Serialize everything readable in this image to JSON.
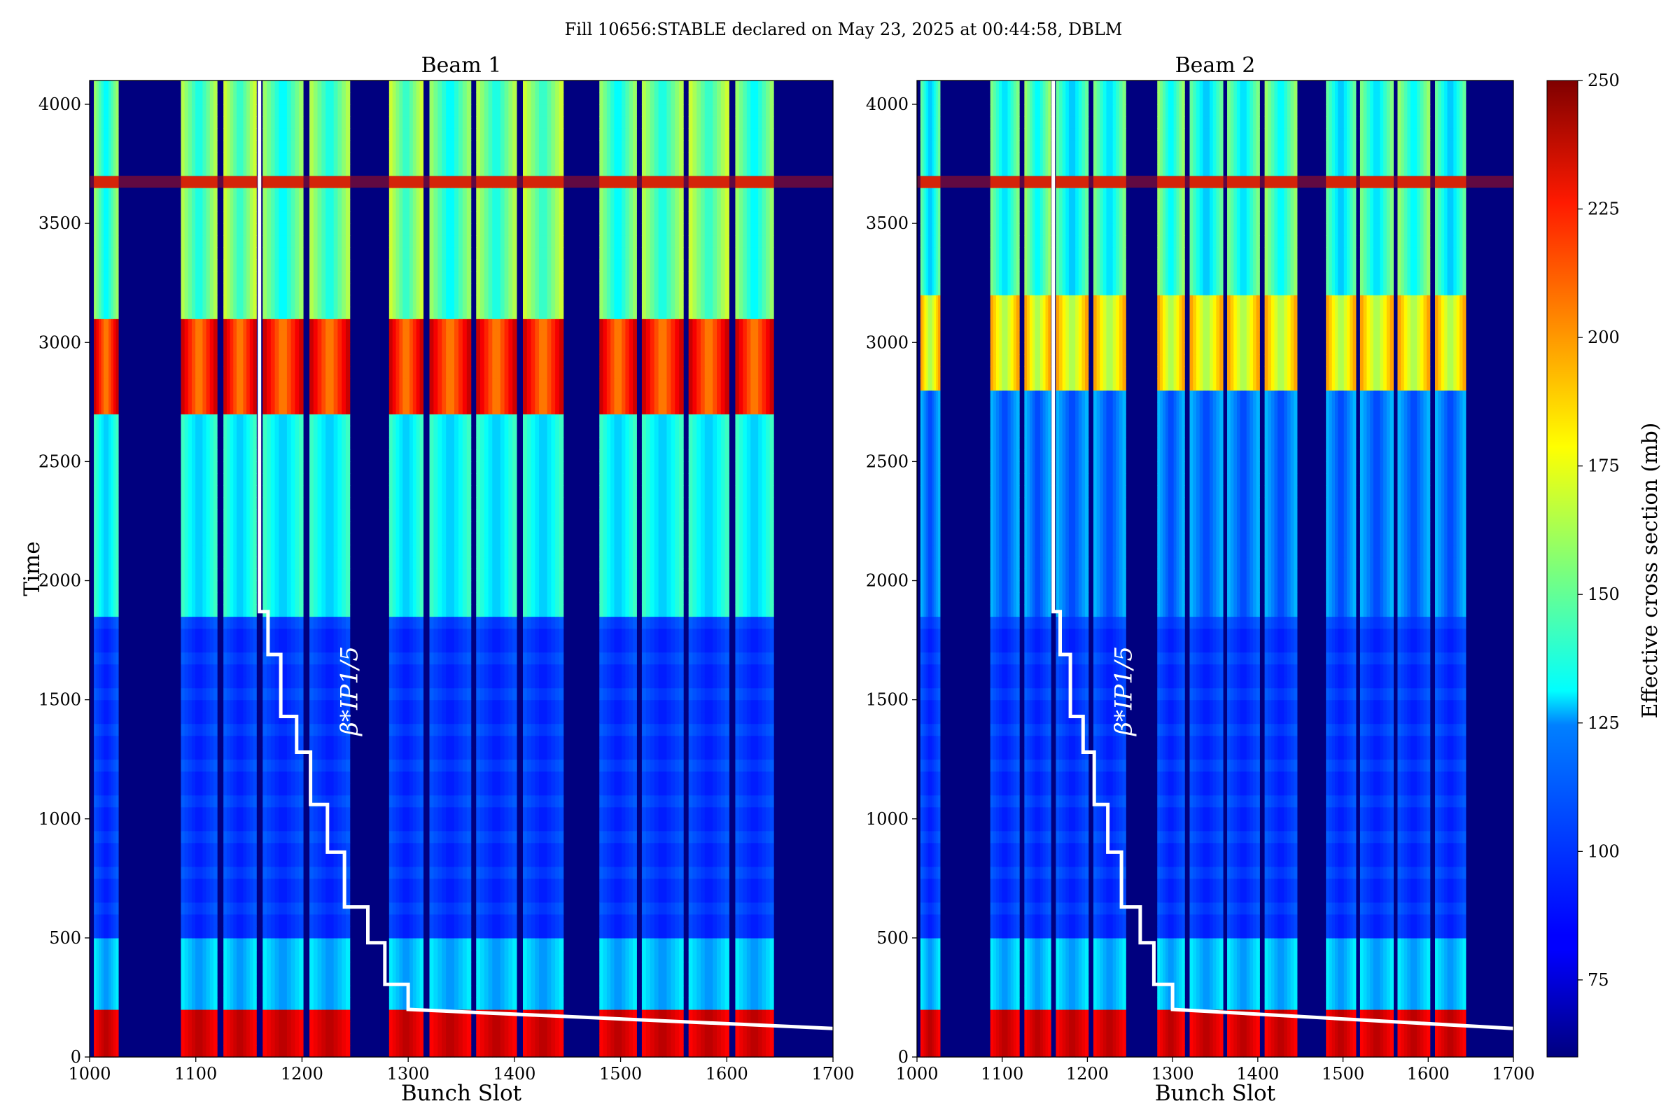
{
  "suptitle": "Fill 10656:STABLE declared on May 23, 2025 at 00:44:58, DBLM",
  "colors": {
    "background_cmap_low": "#00007f",
    "overlay_line": "#ffffff",
    "frame": "#000000"
  },
  "colorbar": {
    "label": "Effective cross section (mb)",
    "colormap": "jet",
    "range": [
      60,
      250
    ],
    "ticks": [
      "75",
      "100",
      "125",
      "150",
      "175",
      "200",
      "225",
      "250"
    ],
    "tick_values": [
      75,
      100,
      125,
      150,
      175,
      200,
      225,
      250
    ]
  },
  "chart_data": [
    {
      "type": "heatmap",
      "title": "Beam 1",
      "xlabel": "Bunch Slot",
      "ylabel": "Time",
      "xlim": [
        1000,
        1700
      ],
      "ylim": [
        0,
        4100
      ],
      "xticks": [
        "1000",
        "1100",
        "1200",
        "1300",
        "1400",
        "1500",
        "1600",
        "1700"
      ],
      "xtick_values": [
        1000,
        1100,
        1200,
        1300,
        1400,
        1500,
        1600,
        1700
      ],
      "yticks": [
        "0",
        "500",
        "1000",
        "1500",
        "2000",
        "2500",
        "3000",
        "3500",
        "4000"
      ],
      "ytick_values": [
        0,
        500,
        1000,
        1500,
        2000,
        2500,
        3000,
        3500,
        4000
      ],
      "filled_bunch_trains": [
        [
          1004,
          1027
        ],
        [
          1086,
          1120
        ],
        [
          1126,
          1157
        ],
        [
          1163,
          1201
        ],
        [
          1207,
          1245
        ],
        [
          1282,
          1314
        ],
        [
          1320,
          1359
        ],
        [
          1364,
          1402
        ],
        [
          1408,
          1446
        ],
        [
          1480,
          1515
        ],
        [
          1520,
          1559
        ],
        [
          1564,
          1602
        ],
        [
          1608,
          1644
        ]
      ],
      "overlay_label": "β*IP1/5",
      "overlay_step_line": {
        "x": [
          1160,
          1160,
          1168,
          1168,
          1180,
          1180,
          1195,
          1195,
          1208,
          1208,
          1224,
          1224,
          1240,
          1240,
          1262,
          1262,
          1278,
          1278,
          1300,
          1300,
          1700
        ],
        "y": [
          4100,
          1870,
          1870,
          1690,
          1690,
          1430,
          1430,
          1280,
          1280,
          1060,
          1060,
          860,
          860,
          630,
          630,
          480,
          480,
          305,
          305,
          200,
          120
        ]
      },
      "features": {
        "high_intensity_band_time": [
          0,
          200
        ],
        "intensity_onset_time": 1870,
        "peak_region_time": [
          2700,
          3000
        ],
        "noise_row_time": [
          3650,
          3700
        ]
      }
    },
    {
      "type": "heatmap",
      "title": "Beam 2",
      "xlabel": "Bunch Slot",
      "ylabel": "",
      "xlim": [
        1000,
        1700
      ],
      "ylim": [
        0,
        4100
      ],
      "xticks": [
        "1000",
        "1100",
        "1200",
        "1300",
        "1400",
        "1500",
        "1600",
        "1700"
      ],
      "xtick_values": [
        1000,
        1100,
        1200,
        1300,
        1400,
        1500,
        1600,
        1700
      ],
      "yticks": [
        "0",
        "500",
        "1000",
        "1500",
        "2000",
        "2500",
        "3000",
        "3500",
        "4000"
      ],
      "ytick_values": [
        0,
        500,
        1000,
        1500,
        2000,
        2500,
        3000,
        3500,
        4000
      ],
      "filled_bunch_trains": [
        [
          1004,
          1027
        ],
        [
          1086,
          1120
        ],
        [
          1126,
          1157
        ],
        [
          1163,
          1201
        ],
        [
          1207,
          1245
        ],
        [
          1282,
          1314
        ],
        [
          1320,
          1359
        ],
        [
          1364,
          1402
        ],
        [
          1408,
          1446
        ],
        [
          1480,
          1515
        ],
        [
          1520,
          1559
        ],
        [
          1564,
          1602
        ],
        [
          1608,
          1644
        ]
      ],
      "overlay_label": "β*IP1/5",
      "overlay_step_line": {
        "x": [
          1160,
          1160,
          1168,
          1168,
          1180,
          1180,
          1195,
          1195,
          1208,
          1208,
          1224,
          1224,
          1240,
          1240,
          1262,
          1262,
          1278,
          1278,
          1300,
          1300,
          1700
        ],
        "y": [
          4100,
          1870,
          1870,
          1690,
          1690,
          1430,
          1430,
          1280,
          1280,
          1060,
          1060,
          860,
          860,
          630,
          630,
          480,
          480,
          305,
          305,
          200,
          120
        ]
      },
      "features": {
        "high_intensity_band_time": [
          0,
          200
        ],
        "peak_region_time": [
          2800,
          3100
        ],
        "noise_row_time": [
          3650,
          3700
        ]
      }
    }
  ]
}
